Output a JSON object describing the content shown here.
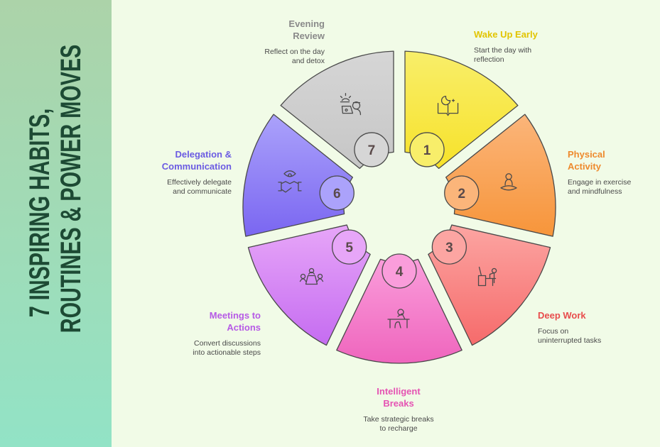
{
  "title": {
    "line1": "7 INSPIRING HABITS,",
    "line2": "ROUTINES & POWER MOVES"
  },
  "steps": [
    {
      "number": "1",
      "title": "Wake Up Early",
      "description": "Start the day with reflection",
      "color": "#f7e22a",
      "light": "#f8ee6a",
      "text_color": "#e2c400",
      "icon": "moon-book-icon"
    },
    {
      "number": "2",
      "title": "Physical Activity",
      "description": "Engage in exercise and mindfulness",
      "color": "#f7953a",
      "light": "#fbb57a",
      "text_color": "#ee8a2e",
      "icon": "meditation-icon"
    },
    {
      "number": "3",
      "title": "Deep Work",
      "description": "Focus on uninterrupted tasks",
      "color": "#f66b6b",
      "light": "#fca5a2",
      "text_color": "#e84c4c",
      "icon": "desk-worker-icon"
    },
    {
      "number": "4",
      "title": "Intelligent Breaks",
      "description": "Take strategic breaks to recharge",
      "color": "#ef65bd",
      "light": "#fa9ddb",
      "text_color": "#e553b3",
      "icon": "resting-at-desk-icon"
    },
    {
      "number": "5",
      "title": "Meetings to Actions",
      "description": "Convert discussions into actionable steps",
      "color": "#c56cf1",
      "light": "#e7a6f8",
      "text_color": "#b65ae6",
      "icon": "meeting-table-icon"
    },
    {
      "number": "6",
      "title": "Delegation & Communication",
      "description": "Effectively delegate and communicate",
      "color": "#7a66f1",
      "light": "#aba2fb",
      "text_color": "#6b5be2",
      "icon": "handshake-eye-icon"
    },
    {
      "number": "7",
      "title": "Evening Review",
      "description": "Reflect on the day and detox",
      "color": "#c6c6c6",
      "light": "#d6d6d6",
      "text_color": "#8a8a8a",
      "icon": "sunset-laptop-icon"
    }
  ]
}
